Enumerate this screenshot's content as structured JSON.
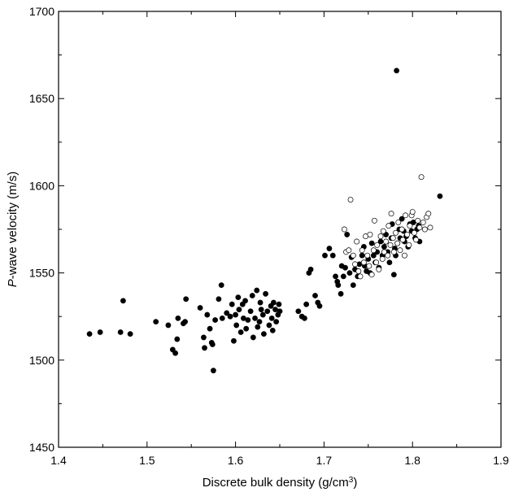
{
  "chart_data": {
    "type": "scatter",
    "title": "",
    "xlabel_prefix": "Discrete bulk density (g/cm",
    "xlabel_sup": "3",
    "xlabel_suffix": ")",
    "ylabel_italic": "P",
    "ylabel_rest": "-wave velocity (m/s)",
    "xlim": [
      1.4,
      1.9
    ],
    "ylim": [
      1450,
      1700
    ],
    "xticks": [
      "1.4",
      "1.5",
      "1.6",
      "1.7",
      "1.8",
      "1.9"
    ],
    "yticks": [
      "1450",
      "1500",
      "1550",
      "1600",
      "1650",
      "1700"
    ],
    "grid": false,
    "series": [
      {
        "marker": "filled-circle",
        "color": "#000000",
        "points": [
          [
            1.435,
            1515
          ],
          [
            1.447,
            1516
          ],
          [
            1.47,
            1516
          ],
          [
            1.473,
            1534
          ],
          [
            1.481,
            1515
          ],
          [
            1.51,
            1522
          ],
          [
            1.524,
            1520
          ],
          [
            1.529,
            1506
          ],
          [
            1.532,
            1504
          ],
          [
            1.534,
            1512
          ],
          [
            1.535,
            1524
          ],
          [
            1.541,
            1521
          ],
          [
            1.543,
            1522
          ],
          [
            1.544,
            1535
          ],
          [
            1.56,
            1530
          ],
          [
            1.564,
            1513
          ],
          [
            1.565,
            1507
          ],
          [
            1.568,
            1526
          ],
          [
            1.571,
            1518
          ],
          [
            1.573,
            1510
          ],
          [
            1.574,
            1509
          ],
          [
            1.575,
            1494
          ],
          [
            1.577,
            1523
          ],
          [
            1.581,
            1535
          ],
          [
            1.584,
            1543
          ],
          [
            1.585,
            1524
          ],
          [
            1.59,
            1527
          ],
          [
            1.594,
            1525
          ],
          [
            1.596,
            1532
          ],
          [
            1.598,
            1511
          ],
          [
            1.6,
            1526
          ],
          [
            1.601,
            1520
          ],
          [
            1.603,
            1536
          ],
          [
            1.604,
            1529
          ],
          [
            1.606,
            1516
          ],
          [
            1.608,
            1532
          ],
          [
            1.609,
            1524
          ],
          [
            1.611,
            1534
          ],
          [
            1.612,
            1518
          ],
          [
            1.614,
            1523
          ],
          [
            1.617,
            1528
          ],
          [
            1.619,
            1537
          ],
          [
            1.62,
            1513
          ],
          [
            1.622,
            1524
          ],
          [
            1.624,
            1540
          ],
          [
            1.625,
            1519
          ],
          [
            1.627,
            1522
          ],
          [
            1.628,
            1533
          ],
          [
            1.629,
            1529
          ],
          [
            1.631,
            1526
          ],
          [
            1.632,
            1515
          ],
          [
            1.634,
            1538
          ],
          [
            1.636,
            1528
          ],
          [
            1.638,
            1520
          ],
          [
            1.64,
            1531
          ],
          [
            1.641,
            1524
          ],
          [
            1.642,
            1517
          ],
          [
            1.643,
            1533
          ],
          [
            1.645,
            1529
          ],
          [
            1.646,
            1522
          ],
          [
            1.648,
            1526
          ],
          [
            1.649,
            1532
          ],
          [
            1.65,
            1528
          ],
          [
            1.671,
            1528
          ],
          [
            1.675,
            1525
          ],
          [
            1.678,
            1524
          ],
          [
            1.68,
            1532
          ],
          [
            1.683,
            1550
          ],
          [
            1.685,
            1552
          ],
          [
            1.69,
            1537
          ],
          [
            1.693,
            1533
          ],
          [
            1.695,
            1531
          ],
          [
            1.701,
            1560
          ],
          [
            1.706,
            1564
          ],
          [
            1.71,
            1560
          ],
          [
            1.713,
            1548
          ],
          [
            1.715,
            1545
          ],
          [
            1.716,
            1543
          ],
          [
            1.719,
            1538
          ],
          [
            1.72,
            1554
          ],
          [
            1.722,
            1548
          ],
          [
            1.724,
            1553
          ],
          [
            1.726,
            1572
          ],
          [
            1.729,
            1550
          ],
          [
            1.731,
            1559
          ],
          [
            1.733,
            1543
          ],
          [
            1.735,
            1552
          ],
          [
            1.738,
            1548
          ],
          [
            1.74,
            1555
          ],
          [
            1.743,
            1560
          ],
          [
            1.745,
            1565
          ],
          [
            1.746,
            1554
          ],
          [
            1.748,
            1551
          ],
          [
            1.75,
            1558
          ],
          [
            1.752,
            1550
          ],
          [
            1.754,
            1567
          ],
          [
            1.756,
            1560
          ],
          [
            1.758,
            1556
          ],
          [
            1.76,
            1562
          ],
          [
            1.762,
            1553
          ],
          [
            1.764,
            1568
          ],
          [
            1.766,
            1560
          ],
          [
            1.768,
            1565
          ],
          [
            1.77,
            1572
          ],
          [
            1.772,
            1562
          ],
          [
            1.774,
            1556
          ],
          [
            1.776,
            1570
          ],
          [
            1.777,
            1578
          ],
          [
            1.779,
            1549
          ],
          [
            1.78,
            1564
          ],
          [
            1.781,
            1560
          ],
          [
            1.782,
            1666
          ],
          [
            1.783,
            1567
          ],
          [
            1.785,
            1575
          ],
          [
            1.786,
            1570
          ],
          [
            1.788,
            1581
          ],
          [
            1.79,
            1574
          ],
          [
            1.791,
            1568
          ],
          [
            1.793,
            1571
          ],
          [
            1.795,
            1565
          ],
          [
            1.797,
            1578
          ],
          [
            1.799,
            1574
          ],
          [
            1.801,
            1579
          ],
          [
            1.803,
            1570
          ],
          [
            1.805,
            1575
          ],
          [
            1.807,
            1577
          ],
          [
            1.808,
            1568
          ],
          [
            1.831,
            1594
          ]
        ]
      },
      {
        "marker": "open-circle",
        "color": "#000000",
        "points": [
          [
            1.723,
            1575
          ],
          [
            1.725,
            1562
          ],
          [
            1.728,
            1563
          ],
          [
            1.73,
            1592
          ],
          [
            1.733,
            1560
          ],
          [
            1.735,
            1555
          ],
          [
            1.737,
            1568
          ],
          [
            1.739,
            1551
          ],
          [
            1.741,
            1548
          ],
          [
            1.743,
            1563
          ],
          [
            1.745,
            1556
          ],
          [
            1.747,
            1571
          ],
          [
            1.749,
            1560
          ],
          [
            1.751,
            1554
          ],
          [
            1.752,
            1572
          ],
          [
            1.754,
            1549
          ],
          [
            1.756,
            1563
          ],
          [
            1.757,
            1580
          ],
          [
            1.759,
            1556
          ],
          [
            1.76,
            1566
          ],
          [
            1.762,
            1552
          ],
          [
            1.764,
            1571
          ],
          [
            1.766,
            1558
          ],
          [
            1.767,
            1574
          ],
          [
            1.768,
            1562
          ],
          [
            1.77,
            1568
          ],
          [
            1.772,
            1560
          ],
          [
            1.773,
            1577
          ],
          [
            1.775,
            1566
          ],
          [
            1.776,
            1584
          ],
          [
            1.778,
            1570
          ],
          [
            1.779,
            1562
          ],
          [
            1.781,
            1573
          ],
          [
            1.783,
            1567
          ],
          [
            1.784,
            1579
          ],
          [
            1.786,
            1563
          ],
          [
            1.788,
            1575
          ],
          [
            1.789,
            1569
          ],
          [
            1.791,
            1560
          ],
          [
            1.792,
            1583
          ],
          [
            1.794,
            1572
          ],
          [
            1.796,
            1566
          ],
          [
            1.797,
            1577
          ],
          [
            1.799,
            1583
          ],
          [
            1.8,
            1585
          ],
          [
            1.802,
            1573
          ],
          [
            1.804,
            1569
          ],
          [
            1.806,
            1580
          ],
          [
            1.808,
            1576
          ],
          [
            1.81,
            1605
          ],
          [
            1.812,
            1579
          ],
          [
            1.814,
            1575
          ],
          [
            1.816,
            1582
          ],
          [
            1.818,
            1584
          ],
          [
            1.82,
            1576
          ]
        ]
      }
    ]
  }
}
